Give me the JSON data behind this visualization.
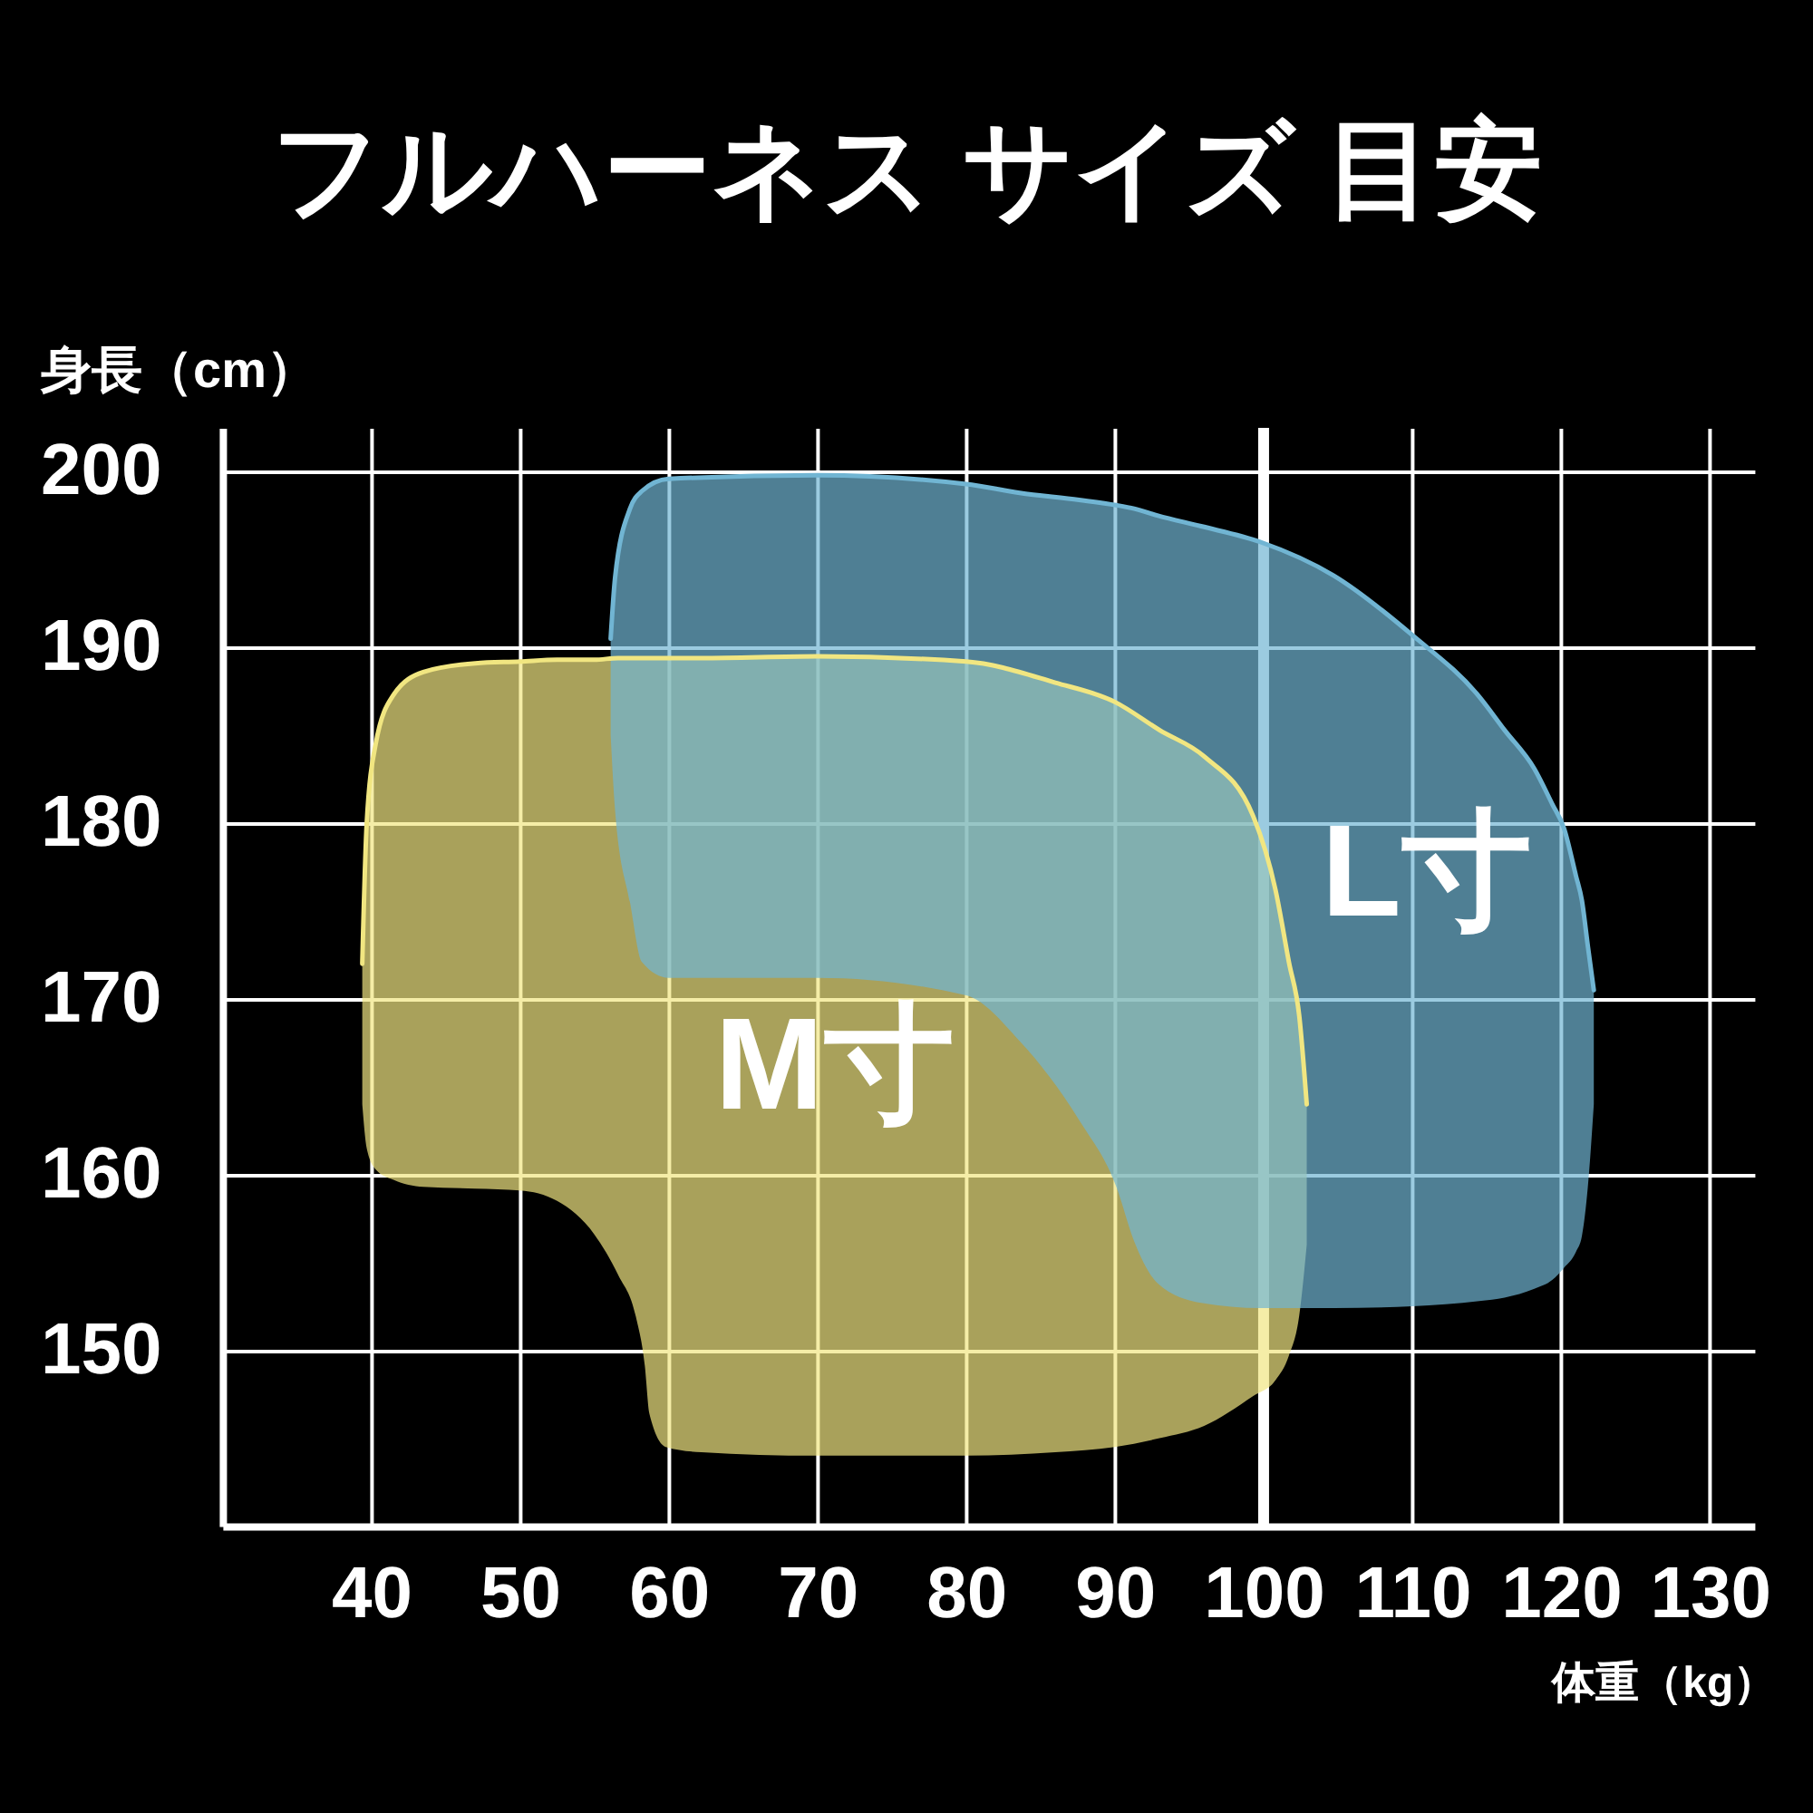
{
  "chart_data": {
    "type": "line",
    "title": "フルハーネス サイズ 目安",
    "xlabel": "体重（kg）",
    "ylabel": "身長（cm）",
    "xlim": [
      30,
      133
    ],
    "ylim": [
      140,
      202.5
    ],
    "xticks": [
      40,
      50,
      60,
      70,
      80,
      90,
      100,
      110,
      120,
      130
    ],
    "yticks": [
      150,
      160,
      170,
      180,
      190,
      200
    ],
    "grid": true,
    "ref_lines": [
      {
        "axis": "x",
        "value": 100,
        "color": "#ffffff"
      }
    ],
    "series": [
      {
        "name": "M寸",
        "color": "#f1e681",
        "x": [
          39.4,
          39.7,
          40.3,
          41.5,
          43.5,
          47,
          50,
          52.5,
          55,
          56.6,
          57.8,
          58.4,
          58.7,
          59.8,
          62.2,
          70,
          80,
          86,
          90,
          93,
          96,
          99.3,
          100.8,
          101.7,
          102.4,
          102.9
        ],
        "values": [
          172,
          180,
          184.5,
          187.3,
          188.6,
          189.1,
          189.2,
          189.3,
          189.3,
          189.4,
          189.4,
          189.4,
          189.4,
          189.4,
          189.4,
          189.5,
          189.2,
          188,
          186.9,
          185.3,
          183.8,
          180.4,
          176.2,
          172.1,
          169,
          164
        ],
        "upper": [
          172,
          180,
          184.5,
          187.3,
          188.6,
          189.1,
          189.2,
          189.3,
          189.3,
          189.4,
          189.4,
          189.4,
          189.4,
          189.4,
          189.4,
          189.5,
          189.2,
          188,
          186.9,
          185.3,
          183.8,
          180.4,
          176.2,
          172.1,
          169,
          164
        ],
        "lower": [
          164,
          161.5,
          160.3,
          159.7,
          159.3,
          159.2,
          159.1,
          158.5,
          156.6,
          154.3,
          151.9,
          149.1,
          146.4,
          144.5,
          144.2,
          144,
          144,
          144.2,
          144.5,
          145,
          145.7,
          147.4,
          148.3,
          149.7,
          152,
          156
        ]
      },
      {
        "name": "L寸",
        "color": "#71b5d3",
        "x": [
          56.1,
          56.4,
          57.4,
          58.2,
          60,
          70,
          80,
          83.6,
          87.6,
          90.1,
          91.3,
          92.9,
          95.8,
          99.8,
          104.7,
          110,
          114.5,
          116.2,
          118.2,
          119.4,
          120.2,
          121,
          121.4,
          121.8,
          122.2
        ],
        "values": [
          190.5,
          194,
          197.9,
          198.9,
          199.6,
          199.8,
          199.3,
          198.8,
          198.4,
          198.1,
          197.9,
          197.5,
          196.9,
          196,
          194.1,
          190.7,
          187.2,
          185.3,
          183.1,
          181.1,
          179.7,
          177,
          175.6,
          173,
          170.5
        ],
        "upper": [
          190.5,
          194,
          197.9,
          198.9,
          199.6,
          199.8,
          199.3,
          198.8,
          198.4,
          198.1,
          197.9,
          197.5,
          196.9,
          196,
          194.1,
          190.7,
          187.2,
          185.3,
          183.1,
          181.1,
          179.7,
          177,
          175.6,
          173,
          170.5
        ],
        "lower": [
          185,
          180.7,
          175.5,
          172.1,
          171.2,
          171.2,
          170.2,
          167.6,
          163.1,
          159.3,
          156.2,
          153.8,
          152.7,
          152.4,
          152.4,
          152.5,
          152.8,
          153,
          153.5,
          154,
          154.7,
          155.6,
          156.5,
          159.3,
          164
        ]
      }
    ]
  }
}
